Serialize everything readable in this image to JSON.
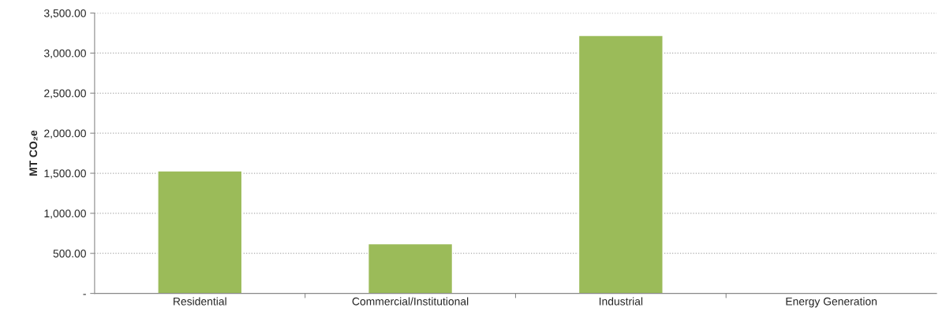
{
  "chart_data": {
    "type": "bar",
    "ylabel": "MT CO₂e",
    "categories": [
      "Residential",
      "Commercial/Institutional",
      "Industrial",
      "Energy Generation"
    ],
    "values": [
      1530,
      620,
      3220,
      null
    ],
    "color": "#9bbb59",
    "ylim": [
      0,
      3500
    ],
    "yticks": [
      {
        "value": 0,
        "label": "-"
      },
      {
        "value": 500,
        "label": "500.00"
      },
      {
        "value": 1000,
        "label": "1,000.00"
      },
      {
        "value": 1500,
        "label": "1,500.00"
      },
      {
        "value": 2000,
        "label": "2,000.00"
      },
      {
        "value": 2500,
        "label": "2,500.00"
      },
      {
        "value": 3000,
        "label": "3,000.00"
      },
      {
        "value": 3500,
        "label": "3,500.00"
      }
    ],
    "grid": "y",
    "legend": false
  }
}
